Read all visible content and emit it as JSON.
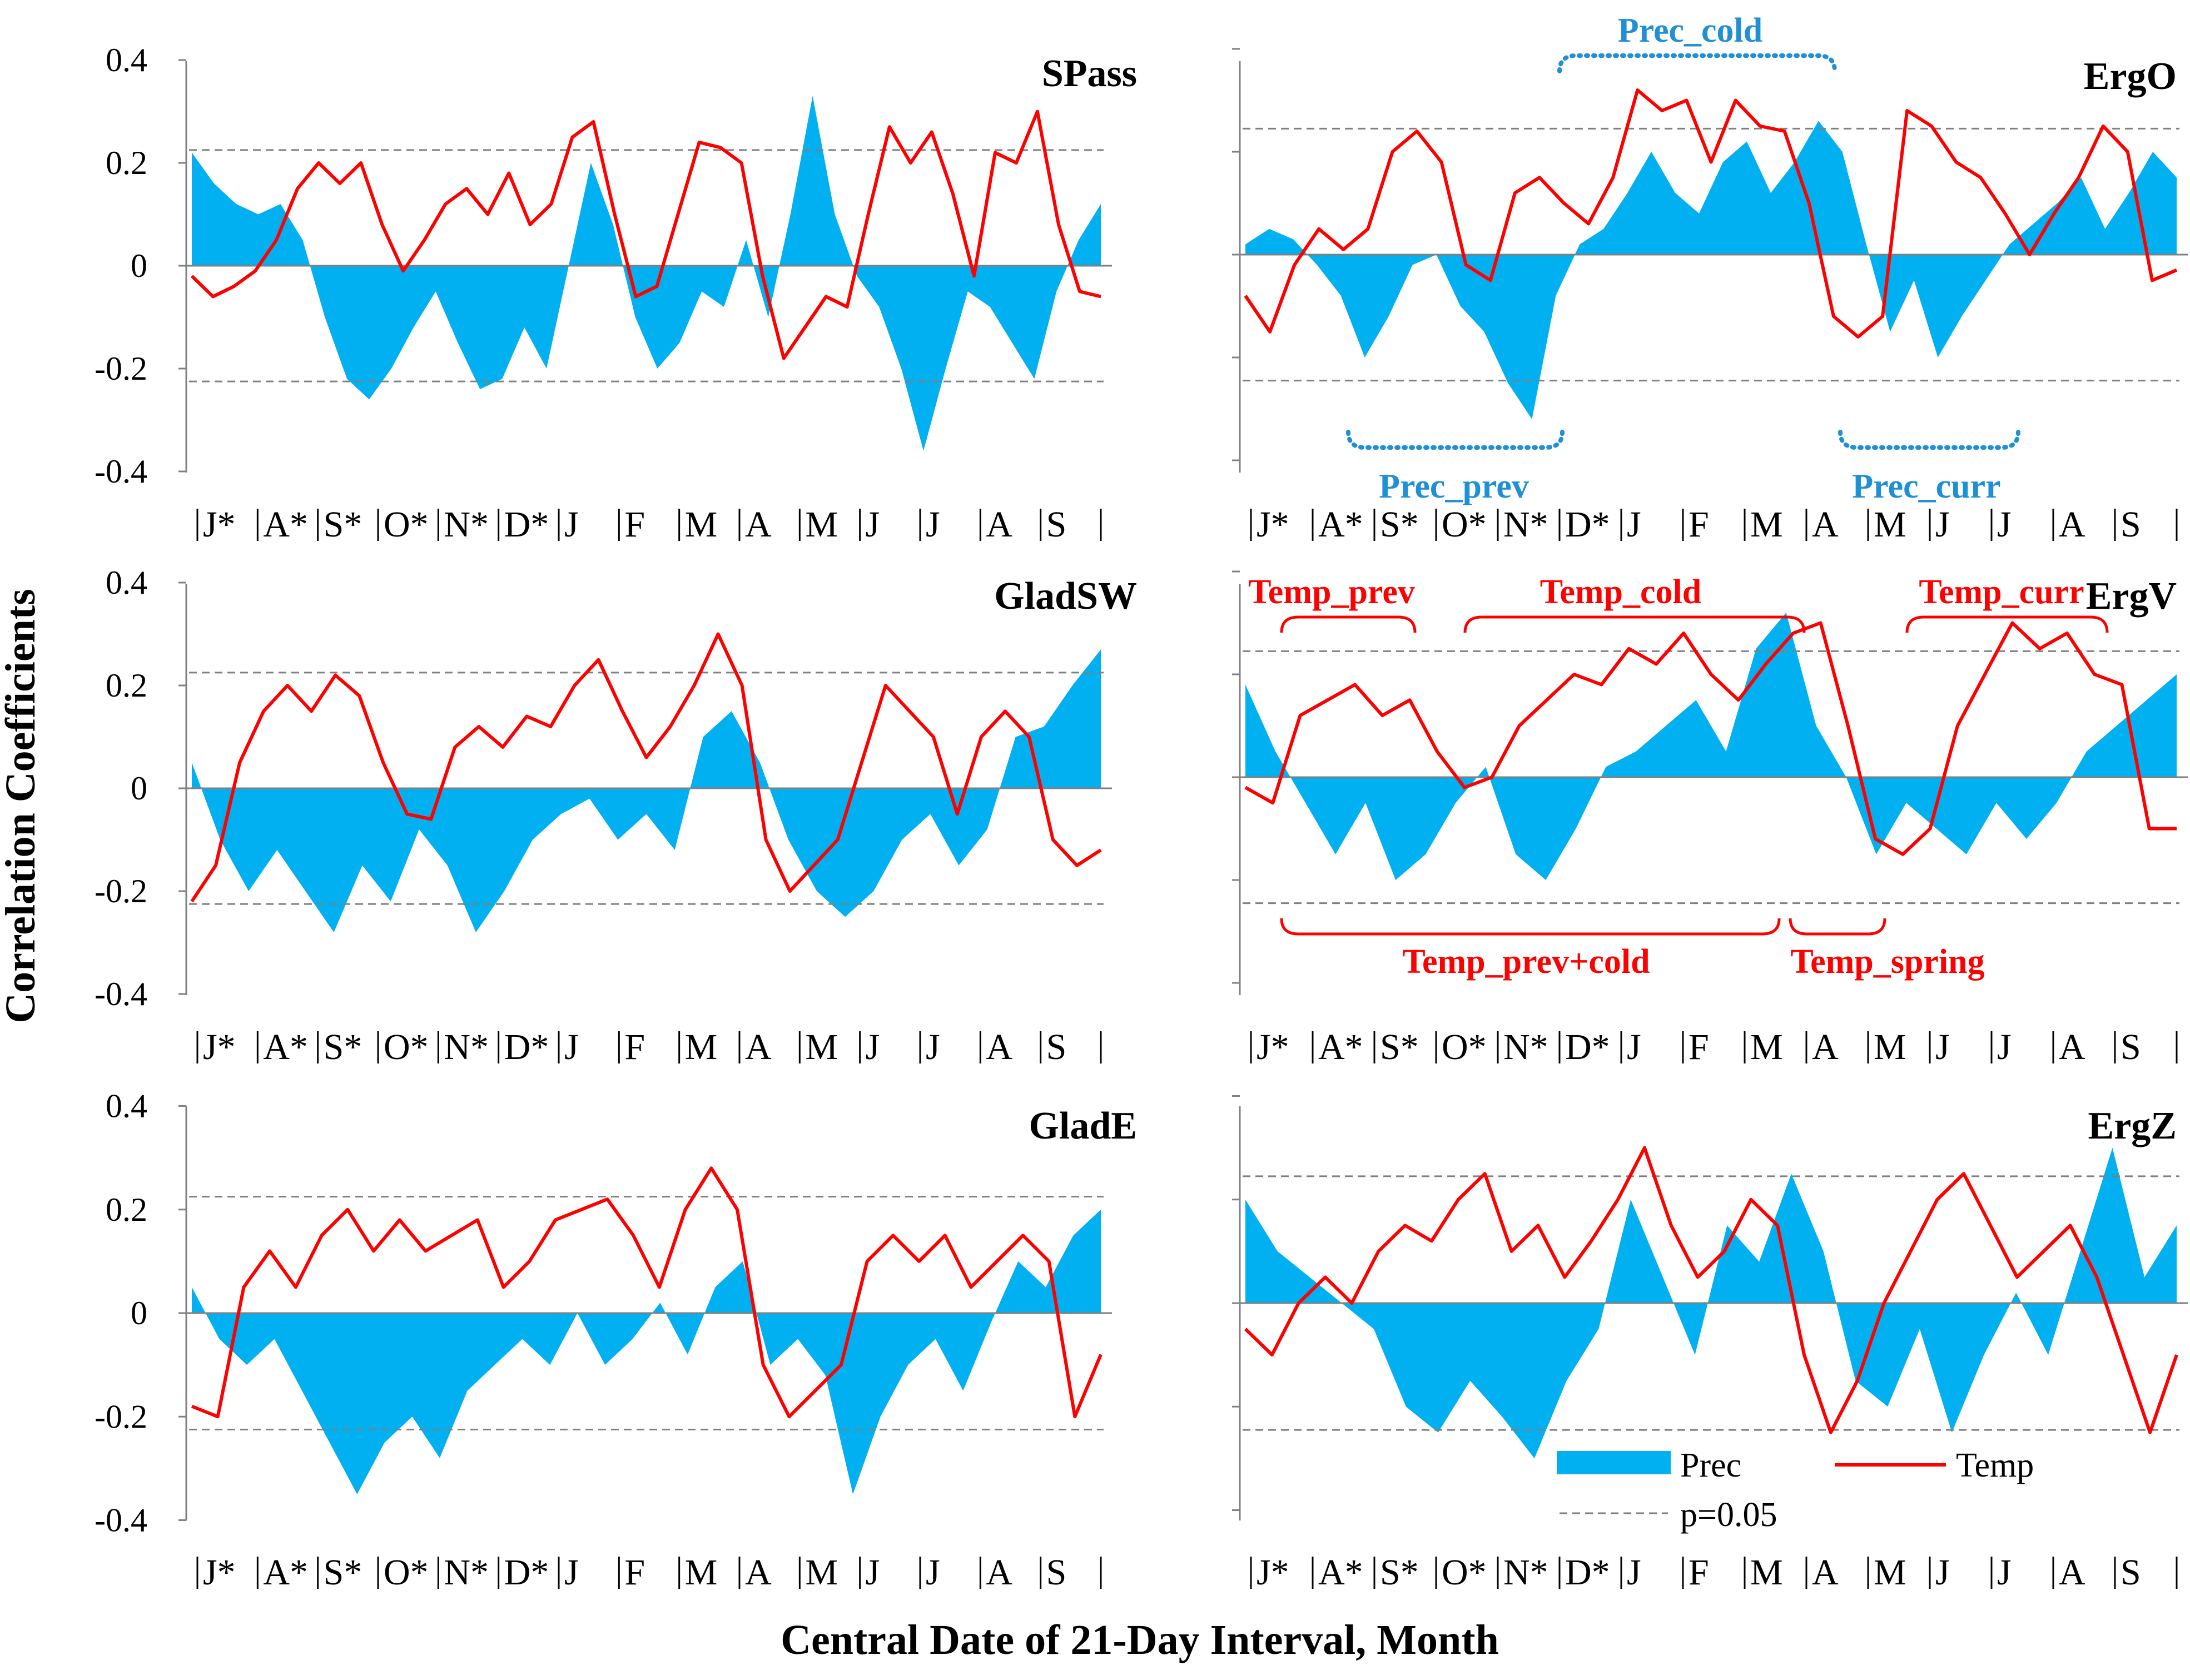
{
  "figure": {
    "ylabel": "Correlation Coefficients",
    "xlabel": "Central Date of 21-Day Interval, Month",
    "colors": {
      "prec": "#00b0f0",
      "temp": "#ff0000",
      "sig": "#808080",
      "annotation_prec": "#1f8fd6",
      "annotation_temp": "#ff0000"
    }
  },
  "legend": {
    "prec": "Prec",
    "temp": "Temp",
    "sig": "p=0.05"
  },
  "chart_data": [
    {
      "type": "area+line",
      "title": "SPass",
      "ylim": [
        -0.4,
        0.4
      ],
      "yticks": [
        "0.4",
        "0.2",
        "0",
        "-0.2",
        "-0.4"
      ],
      "months": [
        "J*",
        "A*",
        "S*",
        "O*",
        "N*",
        "D*",
        "J",
        "F",
        "M",
        "A",
        "M",
        "J",
        "J",
        "A",
        "S"
      ],
      "significance": [
        0.225,
        -0.225
      ],
      "prec": [
        0.22,
        0.16,
        0.12,
        0.1,
        0.12,
        0.05,
        -0.1,
        -0.22,
        -0.26,
        -0.2,
        -0.12,
        -0.05,
        -0.15,
        -0.24,
        -0.22,
        -0.12,
        -0.2,
        0.0,
        0.2,
        0.08,
        -0.1,
        -0.2,
        -0.15,
        -0.05,
        -0.08,
        0.05,
        -0.1,
        0.1,
        0.33,
        0.1,
        -0.02,
        -0.08,
        -0.2,
        -0.36,
        -0.2,
        -0.05,
        -0.08,
        -0.15,
        -0.22,
        -0.05,
        0.05,
        0.12
      ],
      "temp": [
        -0.02,
        -0.06,
        -0.04,
        -0.01,
        0.05,
        0.15,
        0.2,
        0.16,
        0.2,
        0.08,
        -0.01,
        0.05,
        0.12,
        0.15,
        0.1,
        0.18,
        0.08,
        0.12,
        0.25,
        0.28,
        0.1,
        -0.06,
        -0.04,
        0.1,
        0.24,
        0.23,
        0.2,
        -0.02,
        -0.18,
        -0.12,
        -0.06,
        -0.08,
        0.1,
        0.27,
        0.2,
        0.26,
        0.14,
        -0.02,
        0.22,
        0.2,
        0.3,
        0.08,
        -0.05,
        -0.06
      ]
    },
    {
      "type": "area+line",
      "title": "ErgO",
      "ylim": [
        -0.4,
        0.4
      ],
      "yticks": [],
      "months": [
        "J*",
        "A*",
        "S*",
        "O*",
        "N*",
        "D*",
        "J",
        "F",
        "M",
        "A",
        "M",
        "J",
        "J",
        "A",
        "S"
      ],
      "significance": [
        0.245,
        -0.245
      ],
      "annotations": [
        "Prec_cold",
        "Prec_prev",
        "Prec_curr"
      ],
      "prec": [
        0.02,
        0.05,
        0.03,
        -0.02,
        -0.08,
        -0.2,
        -0.12,
        -0.02,
        0.0,
        -0.1,
        -0.15,
        -0.25,
        -0.32,
        -0.08,
        0.02,
        0.05,
        0.12,
        0.2,
        0.12,
        0.08,
        0.18,
        0.22,
        0.12,
        0.18,
        0.26,
        0.2,
        0.02,
        -0.15,
        -0.05,
        -0.2,
        -0.12,
        -0.05,
        0.02,
        0.06,
        0.1,
        0.15,
        0.05,
        0.12,
        0.2,
        0.15
      ],
      "temp": [
        -0.08,
        -0.15,
        -0.02,
        0.05,
        0.01,
        0.05,
        0.2,
        0.24,
        0.18,
        -0.02,
        -0.05,
        0.12,
        0.15,
        0.1,
        0.06,
        0.15,
        0.32,
        0.28,
        0.3,
        0.18,
        0.3,
        0.25,
        0.24,
        0.1,
        -0.12,
        -0.16,
        -0.12,
        0.28,
        0.25,
        0.18,
        0.15,
        0.08,
        0.0,
        0.08,
        0.15,
        0.25,
        0.2,
        -0.05,
        -0.03
      ]
    },
    {
      "type": "area+line",
      "title": "GladSW",
      "ylim": [
        -0.4,
        0.4
      ],
      "yticks": [
        "0.4",
        "0.2",
        "0",
        "-0.2",
        "-0.4"
      ],
      "months": [
        "J*",
        "A*",
        "S*",
        "O*",
        "N*",
        "D*",
        "J",
        "F",
        "M",
        "A",
        "M",
        "J",
        "J",
        "A",
        "S"
      ],
      "significance": [
        0.225,
        -0.225
      ],
      "prec": [
        0.05,
        -0.1,
        -0.2,
        -0.12,
        -0.2,
        -0.28,
        -0.15,
        -0.22,
        -0.08,
        -0.15,
        -0.28,
        -0.2,
        -0.1,
        -0.05,
        -0.02,
        -0.1,
        -0.05,
        -0.12,
        0.1,
        0.15,
        0.05,
        -0.1,
        -0.2,
        -0.25,
        -0.2,
        -0.1,
        -0.05,
        -0.15,
        -0.08,
        0.1,
        0.12,
        0.2,
        0.27
      ],
      "temp": [
        -0.22,
        -0.15,
        0.05,
        0.15,
        0.2,
        0.15,
        0.22,
        0.18,
        0.05,
        -0.05,
        -0.06,
        0.08,
        0.12,
        0.08,
        0.14,
        0.12,
        0.2,
        0.25,
        0.15,
        0.06,
        0.12,
        0.2,
        0.3,
        0.2,
        -0.1,
        -0.2,
        -0.15,
        -0.1,
        0.05,
        0.2,
        0.15,
        0.1,
        -0.05,
        0.1,
        0.15,
        0.1,
        -0.1,
        -0.15,
        -0.12
      ]
    },
    {
      "type": "area+line",
      "title": "ErgV",
      "ylim": [
        -0.4,
        0.4
      ],
      "yticks": [],
      "months": [
        "J*",
        "A*",
        "S*",
        "O*",
        "N*",
        "D*",
        "J",
        "F",
        "M",
        "A",
        "M",
        "J",
        "J",
        "A",
        "S"
      ],
      "significance": [
        0.245,
        -0.245
      ],
      "annotations": [
        "Temp_prev",
        "Temp_cold",
        "Temp_curr",
        "Temp_prev+cold",
        "Temp_spring"
      ],
      "prec": [
        0.18,
        0.05,
        -0.05,
        -0.15,
        -0.05,
        -0.2,
        -0.15,
        -0.05,
        0.02,
        -0.15,
        -0.2,
        -0.1,
        0.02,
        0.05,
        0.1,
        0.15,
        0.05,
        0.25,
        0.32,
        0.1,
        0.0,
        -0.15,
        -0.05,
        -0.1,
        -0.15,
        -0.05,
        -0.12,
        -0.05,
        0.05,
        0.1,
        0.15,
        0.2
      ],
      "temp": [
        -0.02,
        -0.05,
        0.12,
        0.15,
        0.18,
        0.12,
        0.15,
        0.05,
        -0.02,
        0.0,
        0.1,
        0.15,
        0.2,
        0.18,
        0.25,
        0.22,
        0.28,
        0.2,
        0.15,
        0.22,
        0.28,
        0.3,
        0.1,
        -0.12,
        -0.15,
        -0.1,
        0.1,
        0.2,
        0.3,
        0.25,
        0.28,
        0.2,
        0.18,
        -0.1,
        -0.1
      ]
    },
    {
      "type": "area+line",
      "title": "GladE",
      "ylim": [
        -0.4,
        0.4
      ],
      "yticks": [
        "0.4",
        "0.2",
        "0",
        "-0.2",
        "-0.4"
      ],
      "months": [
        "J*",
        "A*",
        "S*",
        "O*",
        "N*",
        "D*",
        "J",
        "F",
        "M",
        "A",
        "M",
        "J",
        "J",
        "A",
        "S"
      ],
      "significance": [
        0.225,
        -0.225
      ],
      "prec": [
        0.05,
        -0.05,
        -0.1,
        -0.05,
        -0.15,
        -0.25,
        -0.35,
        -0.25,
        -0.2,
        -0.28,
        -0.15,
        -0.1,
        -0.05,
        -0.1,
        0.0,
        -0.1,
        -0.05,
        0.02,
        -0.08,
        0.05,
        0.1,
        -0.1,
        -0.05,
        -0.12,
        -0.35,
        -0.2,
        -0.1,
        -0.05,
        -0.15,
        -0.02,
        0.1,
        0.05,
        0.15,
        0.2
      ],
      "temp": [
        -0.18,
        -0.2,
        0.05,
        0.12,
        0.05,
        0.15,
        0.2,
        0.12,
        0.18,
        0.12,
        0.15,
        0.18,
        0.05,
        0.1,
        0.18,
        0.2,
        0.22,
        0.15,
        0.05,
        0.2,
        0.28,
        0.2,
        -0.1,
        -0.2,
        -0.15,
        -0.1,
        0.1,
        0.15,
        0.1,
        0.15,
        0.05,
        0.1,
        0.15,
        0.1,
        -0.2,
        -0.08
      ]
    },
    {
      "type": "area+line",
      "title": "ErgZ",
      "ylim": [
        -0.4,
        0.4
      ],
      "yticks": [],
      "months": [
        "J*",
        "A*",
        "S*",
        "O*",
        "N*",
        "D*",
        "J",
        "F",
        "M",
        "A",
        "M",
        "J",
        "J",
        "A",
        "S"
      ],
      "significance": [
        0.245,
        -0.245
      ],
      "prec": [
        0.2,
        0.1,
        0.05,
        0.0,
        -0.05,
        -0.2,
        -0.25,
        -0.15,
        -0.22,
        -0.3,
        -0.15,
        -0.05,
        0.2,
        0.05,
        -0.1,
        0.15,
        0.08,
        0.25,
        0.1,
        -0.15,
        -0.2,
        -0.05,
        -0.25,
        -0.1,
        0.02,
        -0.1,
        0.1,
        0.3,
        0.05,
        0.15
      ],
      "temp": [
        -0.05,
        -0.1,
        0.0,
        0.05,
        0.0,
        0.1,
        0.15,
        0.12,
        0.2,
        0.25,
        0.1,
        0.15,
        0.05,
        0.12,
        0.2,
        0.3,
        0.15,
        0.05,
        0.1,
        0.2,
        0.15,
        -0.1,
        -0.25,
        -0.15,
        0.0,
        0.1,
        0.2,
        0.25,
        0.15,
        0.05,
        0.1,
        0.15,
        0.05,
        -0.1,
        -0.25,
        -0.1
      ]
    }
  ]
}
